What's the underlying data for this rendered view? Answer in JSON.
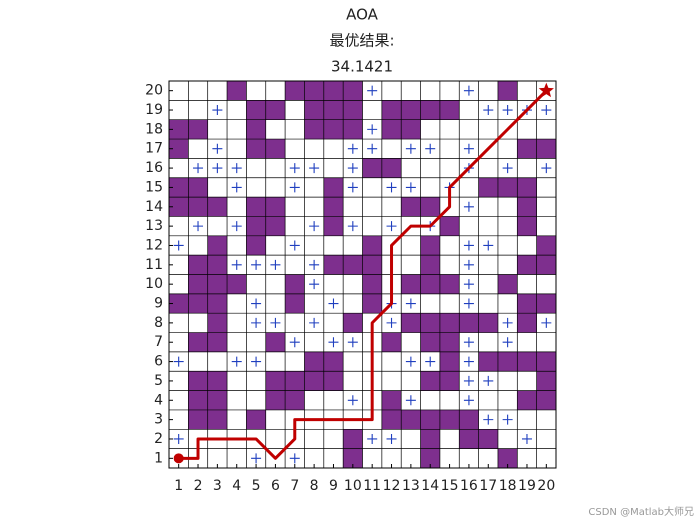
{
  "chart_data": {
    "type": "grid-path",
    "title": "AOA",
    "subtitle": "最优结果:",
    "result": "34.1421",
    "watermark": "CSDN @Matlab大师兄",
    "xlim": [
      0.5,
      20.5
    ],
    "ylim": [
      0.5,
      20.5
    ],
    "xticks": [
      1,
      2,
      3,
      4,
      5,
      6,
      7,
      8,
      9,
      10,
      11,
      12,
      13,
      14,
      15,
      16,
      17,
      18,
      19,
      20
    ],
    "yticks": [
      1,
      2,
      3,
      4,
      5,
      6,
      7,
      8,
      9,
      10,
      11,
      12,
      13,
      14,
      15,
      16,
      17,
      18,
      19,
      20
    ],
    "obstacle_color": "#7e2f8e",
    "explored_color": "#1f3fbf",
    "path_color": "#c00000",
    "obstacles": [
      [
        4,
        20
      ],
      [
        7,
        20
      ],
      [
        8,
        20
      ],
      [
        9,
        20
      ],
      [
        10,
        20
      ],
      [
        18,
        20
      ],
      [
        5,
        19
      ],
      [
        6,
        19
      ],
      [
        8,
        19
      ],
      [
        9,
        19
      ],
      [
        10,
        19
      ],
      [
        12,
        19
      ],
      [
        13,
        19
      ],
      [
        14,
        19
      ],
      [
        15,
        19
      ],
      [
        1,
        18
      ],
      [
        2,
        18
      ],
      [
        5,
        18
      ],
      [
        8,
        18
      ],
      [
        9,
        18
      ],
      [
        10,
        18
      ],
      [
        12,
        18
      ],
      [
        13,
        18
      ],
      [
        1,
        17
      ],
      [
        5,
        17
      ],
      [
        6,
        17
      ],
      [
        19,
        17
      ],
      [
        20,
        17
      ],
      [
        11,
        16
      ],
      [
        12,
        16
      ],
      [
        1,
        15
      ],
      [
        2,
        15
      ],
      [
        9,
        15
      ],
      [
        17,
        15
      ],
      [
        18,
        15
      ],
      [
        19,
        15
      ],
      [
        1,
        14
      ],
      [
        2,
        14
      ],
      [
        3,
        14
      ],
      [
        5,
        14
      ],
      [
        6,
        14
      ],
      [
        9,
        14
      ],
      [
        13,
        14
      ],
      [
        14,
        14
      ],
      [
        19,
        14
      ],
      [
        5,
        13
      ],
      [
        6,
        13
      ],
      [
        9,
        13
      ],
      [
        15,
        13
      ],
      [
        19,
        13
      ],
      [
        3,
        12
      ],
      [
        5,
        12
      ],
      [
        11,
        12
      ],
      [
        14,
        12
      ],
      [
        20,
        12
      ],
      [
        2,
        11
      ],
      [
        3,
        11
      ],
      [
        9,
        11
      ],
      [
        10,
        11
      ],
      [
        11,
        11
      ],
      [
        14,
        11
      ],
      [
        19,
        11
      ],
      [
        20,
        11
      ],
      [
        2,
        10
      ],
      [
        3,
        10
      ],
      [
        4,
        10
      ],
      [
        7,
        10
      ],
      [
        11,
        10
      ],
      [
        13,
        10
      ],
      [
        14,
        10
      ],
      [
        15,
        10
      ],
      [
        18,
        10
      ],
      [
        1,
        9
      ],
      [
        2,
        9
      ],
      [
        3,
        9
      ],
      [
        7,
        9
      ],
      [
        11,
        9
      ],
      [
        19,
        9
      ],
      [
        20,
        9
      ],
      [
        3,
        8
      ],
      [
        10,
        8
      ],
      [
        13,
        8
      ],
      [
        14,
        8
      ],
      [
        15,
        8
      ],
      [
        16,
        8
      ],
      [
        17,
        8
      ],
      [
        19,
        8
      ],
      [
        2,
        7
      ],
      [
        3,
        7
      ],
      [
        6,
        7
      ],
      [
        12,
        7
      ],
      [
        14,
        7
      ],
      [
        15,
        7
      ],
      [
        8,
        6
      ],
      [
        9,
        6
      ],
      [
        15,
        6
      ],
      [
        17,
        6
      ],
      [
        18,
        6
      ],
      [
        19,
        6
      ],
      [
        20,
        6
      ],
      [
        2,
        5
      ],
      [
        3,
        5
      ],
      [
        6,
        5
      ],
      [
        7,
        5
      ],
      [
        8,
        5
      ],
      [
        9,
        5
      ],
      [
        14,
        5
      ],
      [
        15,
        5
      ],
      [
        20,
        5
      ],
      [
        2,
        4
      ],
      [
        3,
        4
      ],
      [
        6,
        4
      ],
      [
        7,
        4
      ],
      [
        12,
        4
      ],
      [
        19,
        4
      ],
      [
        20,
        4
      ],
      [
        2,
        3
      ],
      [
        3,
        3
      ],
      [
        5,
        3
      ],
      [
        12,
        3
      ],
      [
        13,
        3
      ],
      [
        14,
        3
      ],
      [
        15,
        3
      ],
      [
        16,
        3
      ],
      [
        10,
        2
      ],
      [
        14,
        2
      ],
      [
        16,
        2
      ],
      [
        17,
        2
      ],
      [
        10,
        1
      ],
      [
        14,
        1
      ],
      [
        18,
        1
      ]
    ],
    "explored": [
      [
        11,
        20
      ],
      [
        16,
        20
      ],
      [
        3,
        19
      ],
      [
        17,
        19
      ],
      [
        18,
        19
      ],
      [
        19,
        19
      ],
      [
        20,
        19
      ],
      [
        11,
        18
      ],
      [
        3,
        17
      ],
      [
        10,
        17
      ],
      [
        11,
        17
      ],
      [
        13,
        17
      ],
      [
        14,
        17
      ],
      [
        16,
        17
      ],
      [
        2,
        16
      ],
      [
        3,
        16
      ],
      [
        4,
        16
      ],
      [
        7,
        16
      ],
      [
        8,
        16
      ],
      [
        10,
        16
      ],
      [
        16,
        16
      ],
      [
        18,
        16
      ],
      [
        20,
        16
      ],
      [
        4,
        15
      ],
      [
        7,
        15
      ],
      [
        10,
        15
      ],
      [
        12,
        15
      ],
      [
        13,
        15
      ],
      [
        15,
        15
      ],
      [
        16,
        14
      ],
      [
        2,
        13
      ],
      [
        4,
        13
      ],
      [
        8,
        13
      ],
      [
        10,
        13
      ],
      [
        12,
        13
      ],
      [
        14,
        13
      ],
      [
        1,
        12
      ],
      [
        7,
        12
      ],
      [
        16,
        12
      ],
      [
        17,
        12
      ],
      [
        4,
        11
      ],
      [
        5,
        11
      ],
      [
        6,
        11
      ],
      [
        8,
        11
      ],
      [
        16,
        11
      ],
      [
        8,
        10
      ],
      [
        16,
        10
      ],
      [
        5,
        9
      ],
      [
        9,
        9
      ],
      [
        12,
        9
      ],
      [
        13,
        9
      ],
      [
        16,
        9
      ],
      [
        5,
        8
      ],
      [
        6,
        8
      ],
      [
        8,
        8
      ],
      [
        12,
        8
      ],
      [
        18,
        8
      ],
      [
        20,
        8
      ],
      [
        7,
        7
      ],
      [
        9,
        7
      ],
      [
        10,
        7
      ],
      [
        16,
        7
      ],
      [
        18,
        7
      ],
      [
        1,
        6
      ],
      [
        4,
        6
      ],
      [
        5,
        6
      ],
      [
        13,
        6
      ],
      [
        14,
        6
      ],
      [
        16,
        6
      ],
      [
        16,
        5
      ],
      [
        17,
        5
      ],
      [
        10,
        4
      ],
      [
        13,
        4
      ],
      [
        16,
        4
      ],
      [
        17,
        3
      ],
      [
        18,
        3
      ],
      [
        1,
        2
      ],
      [
        11,
        2
      ],
      [
        12,
        2
      ],
      [
        19,
        2
      ],
      [
        5,
        1
      ],
      [
        7,
        1
      ]
    ],
    "path": {
      "x": [
        1,
        2,
        2,
        5,
        6,
        7,
        7,
        11,
        11,
        12,
        12,
        13,
        14,
        15,
        15,
        16,
        17,
        18,
        19,
        20
      ],
      "y": [
        1,
        1,
        2,
        2,
        1,
        2,
        3,
        3,
        8,
        9,
        12,
        13,
        13,
        14,
        15,
        16,
        17,
        18,
        19,
        20
      ]
    },
    "start": [
      1,
      1
    ],
    "goal": [
      20,
      20
    ]
  }
}
